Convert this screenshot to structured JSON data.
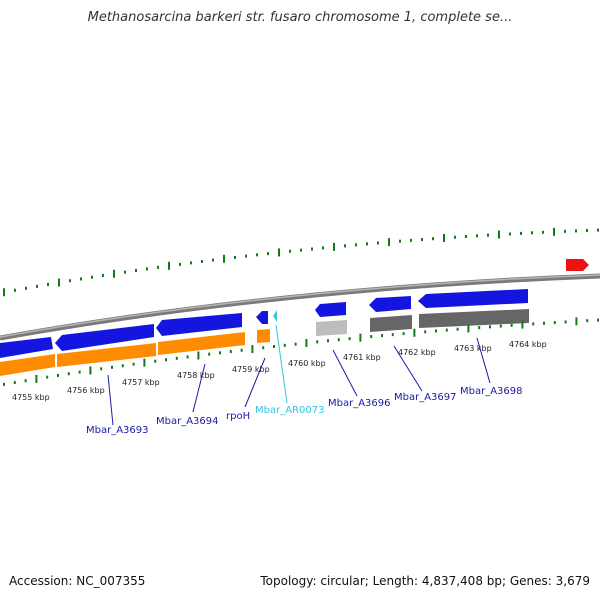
{
  "title": "Methanosarcina barkeri str. fusaro chromosome 1, complete se...",
  "accession": "Accession: NC_007355",
  "summary": "Topology: circular; Length: 4,837,408 bp; Genes: 3,679",
  "scale_labels": [
    "4755 kbp",
    "4756 kbp",
    "4757 kbp",
    "4758 kbp",
    "4759 kbp",
    "4760 kbp",
    "4761 kbp",
    "4762 kbp",
    "4763 kbp",
    "4764 kbp"
  ],
  "gene_labels": [
    {
      "name": "gene-label-mbar-a3693",
      "text": "Mbar_A3693",
      "color": "#1a1aa6"
    },
    {
      "name": "gene-label-mbar-a3694",
      "text": "Mbar_A3694",
      "color": "#1a1aa6"
    },
    {
      "name": "gene-label-rpoh",
      "text": "rpoH",
      "color": "#1a1aa6"
    },
    {
      "name": "gene-label-mbar-ar0073",
      "text": "Mbar_AR0073",
      "color": "#33c7e0"
    },
    {
      "name": "gene-label-mbar-a3696",
      "text": "Mbar_A3696",
      "color": "#1a1aa6"
    },
    {
      "name": "gene-label-mbar-a3697",
      "text": "Mbar_A3697",
      "color": "#1a1aa6"
    },
    {
      "name": "gene-label-mbar-a3698",
      "text": "Mbar_A3698",
      "color": "#1a1aa6"
    }
  ],
  "colors": {
    "gene": "#1515e0",
    "cds": "#ff8c00",
    "rna": "#33c7e0",
    "backbone": "#888888",
    "tick": "#127a12",
    "marker": "#ee1111",
    "light_feature": "#bdbdbd",
    "dark_feature": "#666666"
  }
}
